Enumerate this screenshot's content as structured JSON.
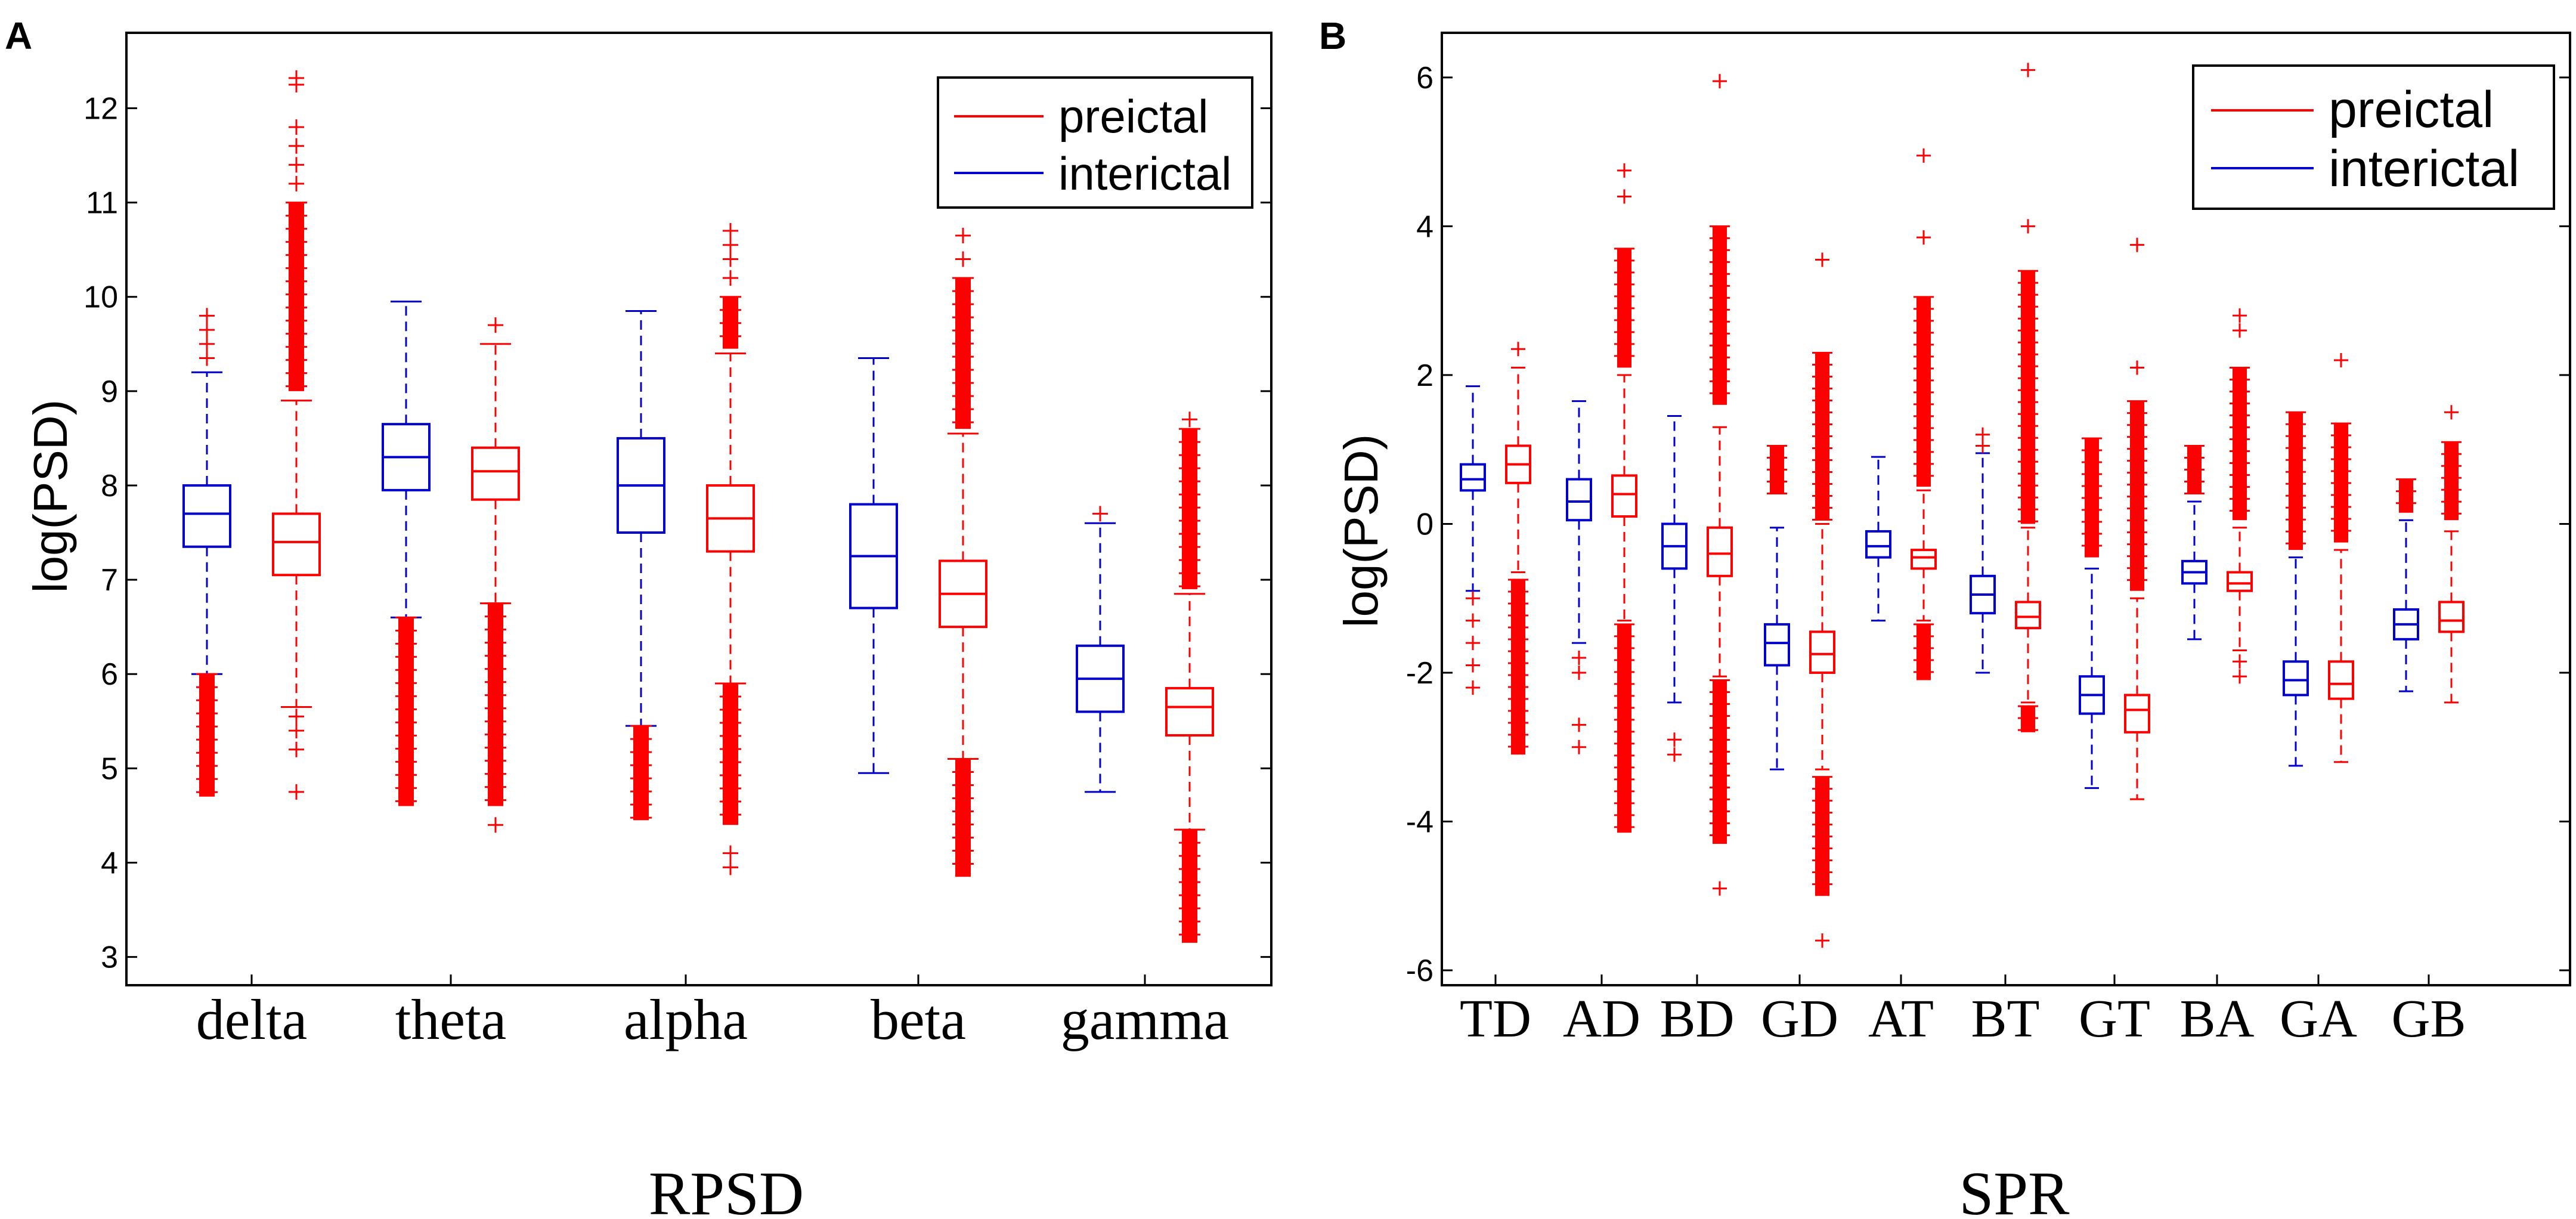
{
  "colors": {
    "preictal": "#ff0000",
    "interictal": "#0000cc",
    "axis": "#000000"
  },
  "chart_data": [
    {
      "type": "box",
      "panel_label": "A",
      "title": "",
      "xlabel": "RPSD",
      "ylabel": "log(PSD)",
      "ylim": [
        2.7,
        12.8
      ],
      "yticks": [
        "3",
        "4",
        "5",
        "6",
        "7",
        "8",
        "9",
        "10",
        "11",
        "12"
      ],
      "legend": {
        "position": "top-right",
        "entries": [
          "preictal",
          "interictal"
        ]
      },
      "categories": [
        "delta",
        "theta",
        "alpha",
        "beta",
        "gamma"
      ],
      "series": [
        {
          "name": "interictal",
          "color": "#0000cc",
          "boxes": [
            {
              "q1": 7.35,
              "median": 7.7,
              "q3": 8.0,
              "wlo": 6.0,
              "whi": 9.2,
              "outlo": [
                [
                  4.7,
                  6.0
                ]
              ],
              "outhi": [
                9.35,
                9.5,
                9.65,
                9.8
              ]
            },
            {
              "q1": 7.95,
              "median": 8.3,
              "q3": 8.65,
              "wlo": 6.6,
              "whi": 9.95,
              "outlo": [
                [
                  4.6,
                  6.6
                ]
              ],
              "outhi": []
            },
            {
              "q1": 7.5,
              "median": 8.0,
              "q3": 8.5,
              "wlo": 5.45,
              "whi": 9.85,
              "outlo": [
                [
                  4.45,
                  5.45
                ]
              ],
              "outhi": []
            },
            {
              "q1": 6.7,
              "median": 7.25,
              "q3": 7.8,
              "wlo": 4.95,
              "whi": 9.35,
              "outlo": [],
              "outhi": []
            },
            {
              "q1": 5.6,
              "median": 5.95,
              "q3": 6.3,
              "wlo": 4.75,
              "whi": 7.6,
              "outlo": [],
              "outhi": [
                7.7
              ]
            }
          ]
        },
        {
          "name": "preictal",
          "color": "#ff0000",
          "boxes": [
            {
              "q1": 7.05,
              "median": 7.4,
              "q3": 7.7,
              "wlo": 5.65,
              "whi": 8.9,
              "outlo": [
                5.55,
                5.4,
                5.2,
                4.75
              ],
              "outhi": [
                [
                  9.0,
                  11.0
                ],
                11.2,
                11.4,
                11.6,
                11.8,
                12.25,
                12.32
              ]
            },
            {
              "q1": 7.85,
              "median": 8.15,
              "q3": 8.4,
              "wlo": 6.75,
              "whi": 9.5,
              "outlo": [
                [
                  4.6,
                  6.75
                ],
                4.4
              ],
              "outhi": [
                9.7
              ]
            },
            {
              "q1": 7.3,
              "median": 7.65,
              "q3": 8.0,
              "wlo": 5.9,
              "whi": 9.4,
              "outlo": [
                [
                  4.4,
                  5.9
                ],
                4.1,
                3.95
              ],
              "outhi": [
                [
                  9.45,
                  10.0
                ],
                10.2,
                10.4,
                10.55,
                10.7
              ]
            },
            {
              "q1": 6.5,
              "median": 6.85,
              "q3": 7.2,
              "wlo": 5.1,
              "whi": 8.55,
              "outlo": [
                [
                  3.85,
                  5.1
                ]
              ],
              "outhi": [
                [
                  8.6,
                  10.2
                ],
                10.4,
                10.65
              ]
            },
            {
              "q1": 5.35,
              "median": 5.65,
              "q3": 5.85,
              "wlo": 4.35,
              "whi": 6.85,
              "outlo": [
                [
                  3.15,
                  4.35
                ]
              ],
              "outhi": [
                [
                  6.9,
                  8.6
                ],
                8.7
              ]
            }
          ]
        }
      ]
    },
    {
      "type": "box",
      "panel_label": "B",
      "title": "",
      "xlabel": "SPR",
      "ylabel": "log(PSD)",
      "ylim": [
        -6.2,
        6.6
      ],
      "yticks": [
        "-6",
        "-4",
        "-2",
        "0",
        "2",
        "4",
        "6"
      ],
      "legend": {
        "position": "top-right",
        "entries": [
          "preictal",
          "interictal"
        ]
      },
      "categories": [
        "TD",
        "AD",
        "BD",
        "GD",
        "AT",
        "BT",
        "GT",
        "BA",
        "GA",
        "GB"
      ],
      "series": [
        {
          "name": "interictal",
          "color": "#0000cc",
          "boxes": [
            {
              "q1": 0.45,
              "median": 0.6,
              "q3": 0.8,
              "wlo": -0.9,
              "whi": 1.85,
              "outlo": [
                -1.0,
                -1.3,
                -1.6,
                -1.9,
                -2.2
              ],
              "outhi": []
            },
            {
              "q1": 0.05,
              "median": 0.3,
              "q3": 0.6,
              "wlo": -1.6,
              "whi": 1.65,
              "outlo": [
                -1.8,
                -2.0,
                -2.7,
                -3.0
              ],
              "outhi": []
            },
            {
              "q1": -0.6,
              "median": -0.3,
              "q3": 0.0,
              "wlo": -2.4,
              "whi": 1.45,
              "outlo": [
                -2.9,
                -3.1
              ],
              "outhi": []
            },
            {
              "q1": -1.9,
              "median": -1.6,
              "q3": -1.35,
              "wlo": -3.3,
              "whi": -0.05,
              "outlo": [],
              "outhi": [
                [
                  0.4,
                  1.05
                ]
              ]
            },
            {
              "q1": -0.45,
              "median": -0.3,
              "q3": -0.1,
              "wlo": -1.3,
              "whi": 0.9,
              "outlo": [],
              "outhi": []
            },
            {
              "q1": -1.2,
              "median": -0.95,
              "q3": -0.7,
              "wlo": -2.0,
              "whi": 0.95,
              "outlo": [],
              "outhi": [
                1.05,
                1.2
              ]
            },
            {
              "q1": -2.55,
              "median": -2.3,
              "q3": -2.05,
              "wlo": -3.55,
              "whi": -0.6,
              "outlo": [],
              "outhi": [
                [
                  -0.45,
                  1.15
                ]
              ]
            },
            {
              "q1": -0.8,
              "median": -0.65,
              "q3": -0.5,
              "wlo": -1.55,
              "whi": 0.3,
              "outlo": [],
              "outhi": [
                [
                  0.4,
                  1.05
                ]
              ]
            },
            {
              "q1": -2.3,
              "median": -2.1,
              "q3": -1.85,
              "wlo": -3.25,
              "whi": -0.45,
              "outlo": [],
              "outhi": [
                [
                  -0.35,
                  1.5
                ]
              ]
            },
            {
              "q1": -1.55,
              "median": -1.35,
              "q3": -1.15,
              "wlo": -2.25,
              "whi": 0.05,
              "outlo": [],
              "outhi": [
                [
                  0.15,
                  0.6
                ]
              ]
            }
          ]
        },
        {
          "name": "preictal",
          "color": "#ff0000",
          "boxes": [
            {
              "q1": 0.55,
              "median": 0.8,
              "q3": 1.05,
              "wlo": -0.65,
              "whi": 2.1,
              "outlo": [
                [
                  -3.1,
                  -0.75
                ]
              ],
              "outhi": [
                2.35
              ]
            },
            {
              "q1": 0.1,
              "median": 0.4,
              "q3": 0.65,
              "wlo": -1.3,
              "whi": 2.0,
              "outlo": [
                [
                  -4.15,
                  -1.35
                ]
              ],
              "outhi": [
                [
                  2.1,
                  3.7
                ],
                4.4,
                4.75
              ]
            },
            {
              "q1": -0.7,
              "median": -0.4,
              "q3": -0.05,
              "wlo": -2.05,
              "whi": 1.3,
              "outlo": [
                [
                  -4.3,
                  -2.1
                ],
                -4.9
              ],
              "outhi": [
                [
                  1.6,
                  4.0
                ],
                5.95
              ]
            },
            {
              "q1": -2.0,
              "median": -1.75,
              "q3": -1.45,
              "wlo": -3.3,
              "whi": 0.0,
              "outlo": [
                [
                  -5.0,
                  -3.4
                ],
                -5.6
              ],
              "outhi": [
                [
                  0.05,
                  2.3
                ],
                3.55
              ]
            },
            {
              "q1": -0.6,
              "median": -0.45,
              "q3": -0.35,
              "wlo": -1.3,
              "whi": 0.45,
              "outlo": [
                [
                  -2.1,
                  -1.35
                ]
              ],
              "outhi": [
                [
                  0.5,
                  3.05
                ],
                3.85,
                4.95
              ]
            },
            {
              "q1": -1.4,
              "median": -1.25,
              "q3": -1.05,
              "wlo": -2.4,
              "whi": -0.05,
              "outlo": [
                [
                  -2.8,
                  -2.45
                ]
              ],
              "outhi": [
                [
                  0.0,
                  3.4
                ],
                4.0,
                6.1
              ]
            },
            {
              "q1": -2.8,
              "median": -2.5,
              "q3": -2.3,
              "wlo": -3.7,
              "whi": -1.0,
              "outlo": [],
              "outhi": [
                [
                  -0.9,
                  1.65
                ],
                2.1,
                3.75
              ]
            },
            {
              "q1": -0.9,
              "median": -0.8,
              "q3": -0.65,
              "wlo": -1.7,
              "whi": -0.05,
              "outlo": [
                -1.85,
                -2.05
              ],
              "outhi": [
                [
                  0.05,
                  2.1
                ],
                2.6,
                2.8
              ]
            },
            {
              "q1": -2.35,
              "median": -2.15,
              "q3": -1.85,
              "wlo": -3.2,
              "whi": -0.35,
              "outlo": [],
              "outhi": [
                [
                  -0.25,
                  1.35
                ],
                2.2
              ]
            },
            {
              "q1": -1.45,
              "median": -1.3,
              "q3": -1.05,
              "wlo": -2.4,
              "whi": -0.1,
              "outlo": [],
              "outhi": [
                [
                  0.05,
                  1.1
                ],
                1.5
              ]
            }
          ]
        }
      ]
    }
  ]
}
